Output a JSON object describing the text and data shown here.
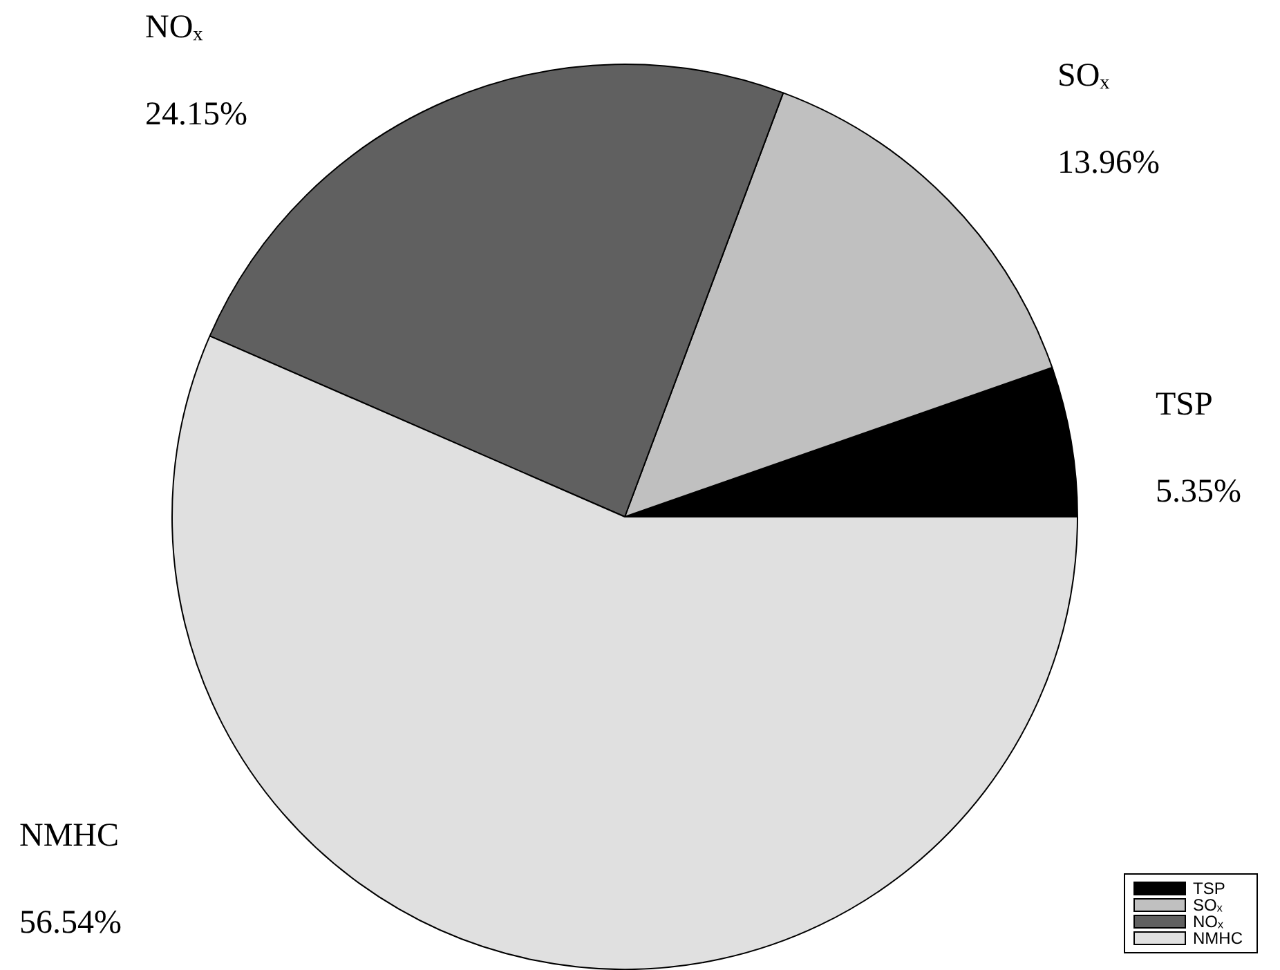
{
  "chart_data": {
    "type": "pie",
    "categories": [
      "TSP",
      "SOₓ",
      "NOₓ",
      "NMHC"
    ],
    "values": [
      5.35,
      13.96,
      24.15,
      56.54
    ],
    "colors": [
      "#000000",
      "#c0c0c0",
      "#606060",
      "#e0e0e0"
    ],
    "value_labels": [
      "5.35%",
      "13.96%",
      "24.15%",
      "56.54%"
    ],
    "legend": "bottom right"
  }
}
